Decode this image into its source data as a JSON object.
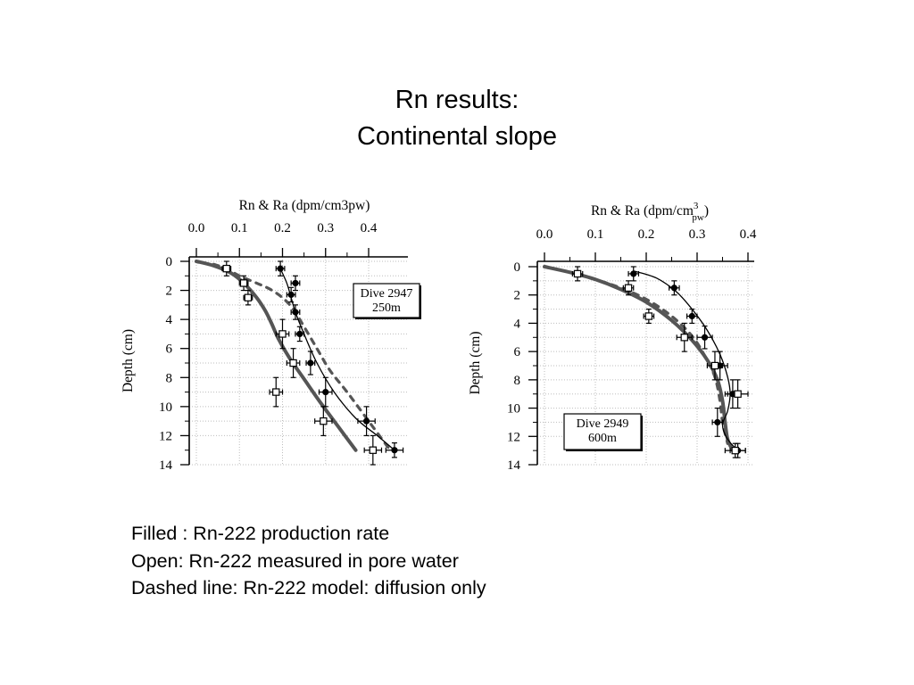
{
  "title": {
    "line1": "Rn results:",
    "line2": "Continental slope"
  },
  "notes": [
    "Filled : Rn-222 production rate",
    "Open: Rn-222 measured in pore water",
    "Dashed line: Rn-222 model: diffusion only"
  ],
  "colors": {
    "line": "#000000",
    "model": "#555555",
    "grid": "#bdbdbd"
  },
  "chart_data": [
    {
      "type": "scatter",
      "xlabel": "Rn & Ra (dpm/cm3pw)",
      "ylabel": "Depth (cm)",
      "xticks": [
        "0.0",
        "0.1",
        "0.2",
        "0.3",
        "0.4"
      ],
      "yticks": [
        "0",
        "2",
        "4",
        "6",
        "8",
        "10",
        "12",
        "14"
      ],
      "xlim": [
        0,
        0.48
      ],
      "ylim": [
        0,
        14
      ],
      "x_axis_position": "top",
      "y_reversed": true,
      "grid": true,
      "annotation": {
        "line1": "Dive 2947",
        "line2": "250m"
      },
      "series": [
        {
          "name": "Filled : Rn-222 production rate",
          "marker": "filled-circle",
          "x": [
            0.195,
            0.23,
            0.22,
            0.23,
            0.24,
            0.265,
            0.3,
            0.395,
            0.46
          ],
          "y": [
            0.5,
            1.5,
            2.3,
            3.5,
            5.0,
            7.0,
            9.0,
            11.0,
            13.0
          ],
          "xerr": [
            0.01,
            0.01,
            0.01,
            0.01,
            0.01,
            0.01,
            0.015,
            0.02,
            0.02
          ],
          "yerr": [
            0.5,
            0.5,
            0.5,
            0.5,
            0.5,
            0.8,
            1.0,
            1.0,
            0.5
          ]
        },
        {
          "name": "Open: Rn-222 measured in pore water",
          "marker": "open-square",
          "x": [
            0.07,
            0.11,
            0.12,
            0.2,
            0.225,
            0.185,
            0.295,
            0.41
          ],
          "y": [
            0.5,
            1.5,
            2.5,
            5.0,
            7.0,
            9.0,
            11.0,
            13.0
          ],
          "xerr": [
            0.01,
            0.01,
            0.01,
            0.015,
            0.015,
            0.015,
            0.02,
            0.02
          ],
          "yerr": [
            0.5,
            0.5,
            0.5,
            1.0,
            1.0,
            1.0,
            1.0,
            1.0
          ]
        },
        {
          "name": "model-solid",
          "style": "solid-thick",
          "x": [
            0.0,
            0.04,
            0.08,
            0.11,
            0.14,
            0.16,
            0.175,
            0.19,
            0.215,
            0.25,
            0.29,
            0.335,
            0.37
          ],
          "y": [
            0.0,
            0.3,
            0.8,
            1.5,
            2.5,
            3.4,
            4.3,
            5.3,
            6.6,
            8.1,
            9.8,
            11.6,
            13.0
          ]
        },
        {
          "name": "Dashed line: Rn-222 model: diffusion only",
          "style": "dashed",
          "x": [
            0.04,
            0.07,
            0.1,
            0.14,
            0.17,
            0.2,
            0.225,
            0.25,
            0.28,
            0.31,
            0.35,
            0.4,
            0.45
          ],
          "y": [
            0.2,
            0.5,
            1.0,
            1.5,
            1.9,
            2.5,
            3.3,
            4.5,
            6.0,
            7.5,
            9.0,
            11.0,
            13.0
          ]
        },
        {
          "name": "fit-filled",
          "style": "solid-thin",
          "x": [
            0.195,
            0.21,
            0.22,
            0.23,
            0.25,
            0.28,
            0.32,
            0.37,
            0.42,
            0.46
          ],
          "y": [
            0.5,
            1.5,
            2.5,
            3.5,
            5.0,
            7.0,
            9.0,
            10.8,
            12.0,
            13.0
          ]
        }
      ]
    },
    {
      "type": "scatter",
      "xlabel": "Rn & Ra (dpm/cm",
      "xlabel_sup": "3",
      "xlabel_sub": "pw",
      "xlabel_end": ")",
      "ylabel": "Depth (cm)",
      "xticks": [
        "0.0",
        "0.1",
        "0.2",
        "0.3",
        "0.4"
      ],
      "yticks": [
        "0",
        "2",
        "4",
        "6",
        "8",
        "10",
        "12",
        "14"
      ],
      "xlim": [
        0,
        0.42
      ],
      "ylim": [
        0,
        14
      ],
      "x_axis_position": "top",
      "y_reversed": true,
      "grid": true,
      "annotation": {
        "line1": "Dive 2949",
        "line2": "600m"
      },
      "series": [
        {
          "name": "Filled : Rn-222 production rate",
          "marker": "filled-circle",
          "x": [
            0.175,
            0.255,
            0.29,
            0.315,
            0.345,
            0.37,
            0.34,
            0.38
          ],
          "y": [
            0.5,
            1.5,
            3.5,
            5.0,
            7.0,
            9.0,
            11.0,
            13.0
          ],
          "xerr": [
            0.01,
            0.01,
            0.01,
            0.015,
            0.015,
            0.015,
            0.01,
            0.015
          ],
          "yerr": [
            0.5,
            0.5,
            0.5,
            0.8,
            1.0,
            1.0,
            1.0,
            0.5
          ]
        },
        {
          "name": "Open: Rn-222 measured in pore water",
          "marker": "open-square",
          "x": [
            0.065,
            0.165,
            0.205,
            0.275,
            0.335,
            0.38,
            0.375
          ],
          "y": [
            0.5,
            1.5,
            3.5,
            5.0,
            7.0,
            9.0,
            13.0
          ],
          "xerr": [
            0.01,
            0.01,
            0.01,
            0.015,
            0.015,
            0.02,
            0.02
          ],
          "yerr": [
            0.5,
            0.5,
            0.5,
            1.0,
            1.0,
            1.0,
            0.5
          ]
        },
        {
          "name": "model-solid",
          "style": "solid-thick",
          "x": [
            0.0,
            0.05,
            0.1,
            0.15,
            0.2,
            0.25,
            0.29,
            0.32,
            0.34,
            0.35,
            0.355,
            0.36,
            0.37
          ],
          "y": [
            0.0,
            0.4,
            0.9,
            1.6,
            2.5,
            3.8,
            5.2,
            6.6,
            8.0,
            9.5,
            11.0,
            12.2,
            13.0
          ]
        },
        {
          "name": "Dashed line: Rn-222 model: diffusion only",
          "style": "dashed",
          "x": [
            0.0,
            0.05,
            0.1,
            0.15,
            0.2,
            0.25,
            0.29,
            0.315,
            0.335,
            0.345,
            0.35,
            0.36
          ],
          "y": [
            0.0,
            0.4,
            0.9,
            1.5,
            2.3,
            3.5,
            4.9,
            6.3,
            7.8,
            9.5,
            11.0,
            12.5
          ]
        },
        {
          "name": "fit-filled",
          "style": "solid-thin",
          "x": [
            0.175,
            0.22,
            0.26,
            0.29,
            0.32,
            0.345,
            0.36,
            0.365,
            0.36,
            0.35,
            0.36,
            0.38
          ],
          "y": [
            0.3,
            0.8,
            1.8,
            3.0,
            4.5,
            6.2,
            7.8,
            9.0,
            10.2,
            11.2,
            12.2,
            13.0
          ]
        }
      ]
    }
  ]
}
